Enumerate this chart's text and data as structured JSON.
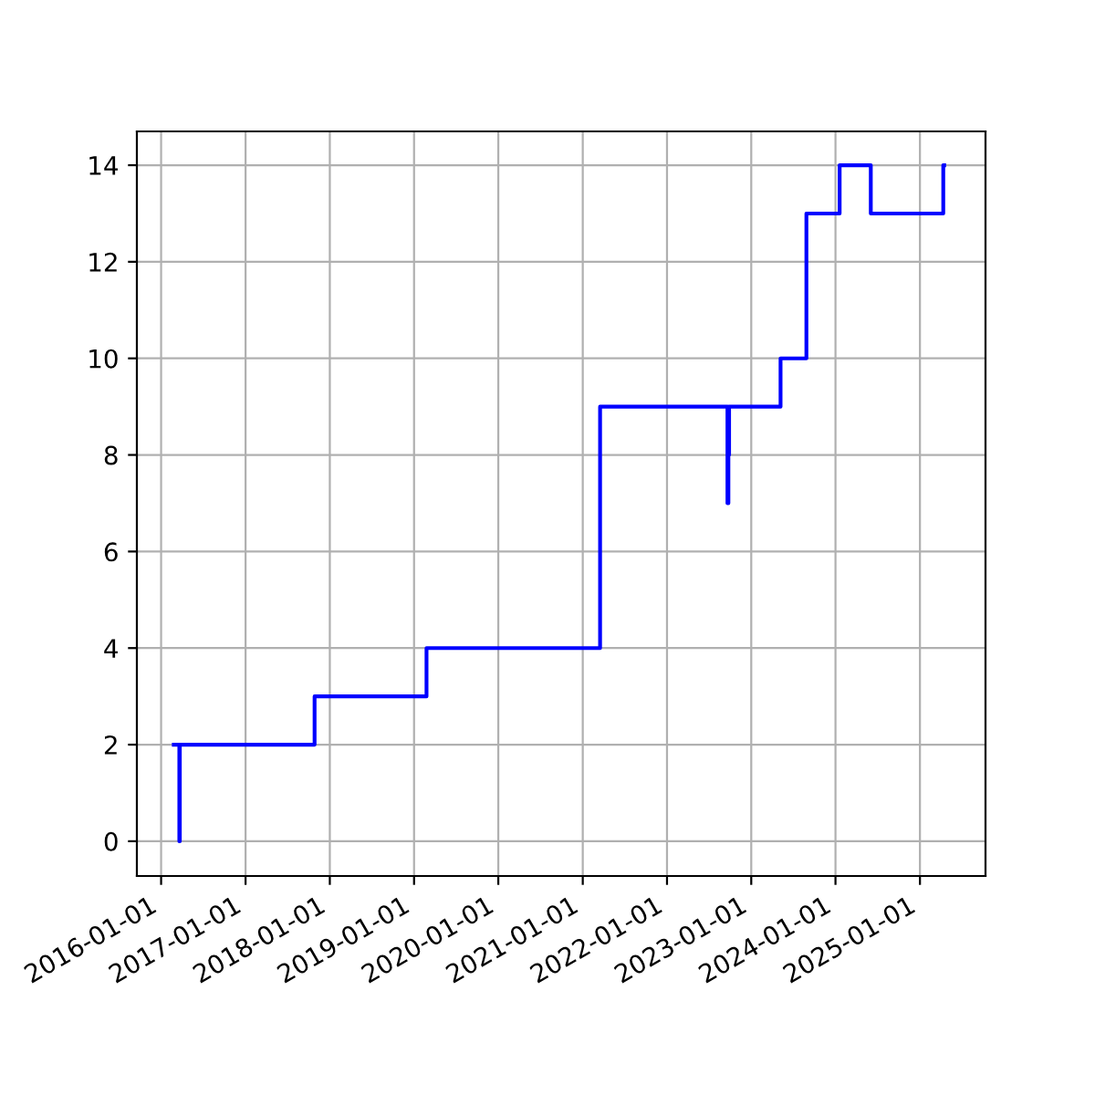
{
  "chart_data": {
    "type": "step",
    "x": [
      "2016-02-25",
      "2016-03-18",
      "2016-03-20",
      "2016-03-22",
      "2017-10-27",
      "2019-02-24",
      "2021-03-17",
      "2022-09-18",
      "2022-09-20",
      "2022-09-24",
      "2022-09-27",
      "2022-10-01",
      "2023-05-08",
      "2023-08-28",
      "2024-01-19",
      "2024-06-02",
      "2025-04-12",
      "2025-04-16"
    ],
    "series": [
      {
        "color": "#0000ff",
        "values": [
          2,
          2,
          0,
          2,
          3,
          4,
          9,
          9,
          7,
          8,
          9,
          9,
          10,
          13,
          14,
          13,
          14,
          14
        ]
      }
    ],
    "xlim": [
      "2015-09-18",
      "2025-10-12"
    ],
    "xticks": [
      "2016-01-01",
      "2017-01-01",
      "2018-01-01",
      "2019-01-01",
      "2020-01-01",
      "2021-01-01",
      "2022-01-01",
      "2023-01-01",
      "2024-01-01",
      "2025-01-01"
    ],
    "ylim": [
      -0.72,
      14.7
    ],
    "yticks": [
      0,
      2,
      4,
      6,
      8,
      10,
      12,
      14
    ],
    "grid": true,
    "line_style": "solid",
    "marker": "none"
  }
}
